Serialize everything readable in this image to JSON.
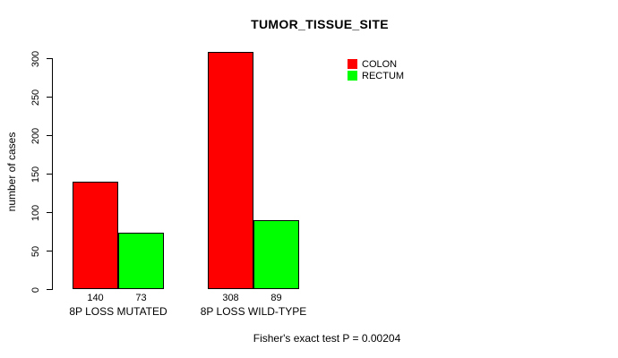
{
  "chart_data": {
    "type": "bar",
    "title": "TUMOR_TISSUE_SITE",
    "ylabel": "number of cases",
    "xlabel": "",
    "ylim": [
      0,
      300
    ],
    "yticks": [
      0,
      50,
      100,
      150,
      200,
      250,
      300
    ],
    "categories": [
      "8P LOSS MUTATED",
      "8P LOSS WILD-TYPE"
    ],
    "series": [
      {
        "name": "COLON",
        "color": "#ff0000",
        "values": [
          140,
          308
        ]
      },
      {
        "name": "RECTUM",
        "color": "#00ff00",
        "values": [
          73,
          89
        ]
      }
    ],
    "bar_value_labels": [
      [
        "140",
        "73"
      ],
      [
        "308",
        "89"
      ]
    ],
    "legend_position": "top-right",
    "grid": false,
    "annotation": "Fisher's exact test P = 0.00204"
  },
  "colors": {
    "colon": "#ff0000",
    "rectum": "#00ff00",
    "axis": "#000000",
    "background": "#ffffff"
  }
}
